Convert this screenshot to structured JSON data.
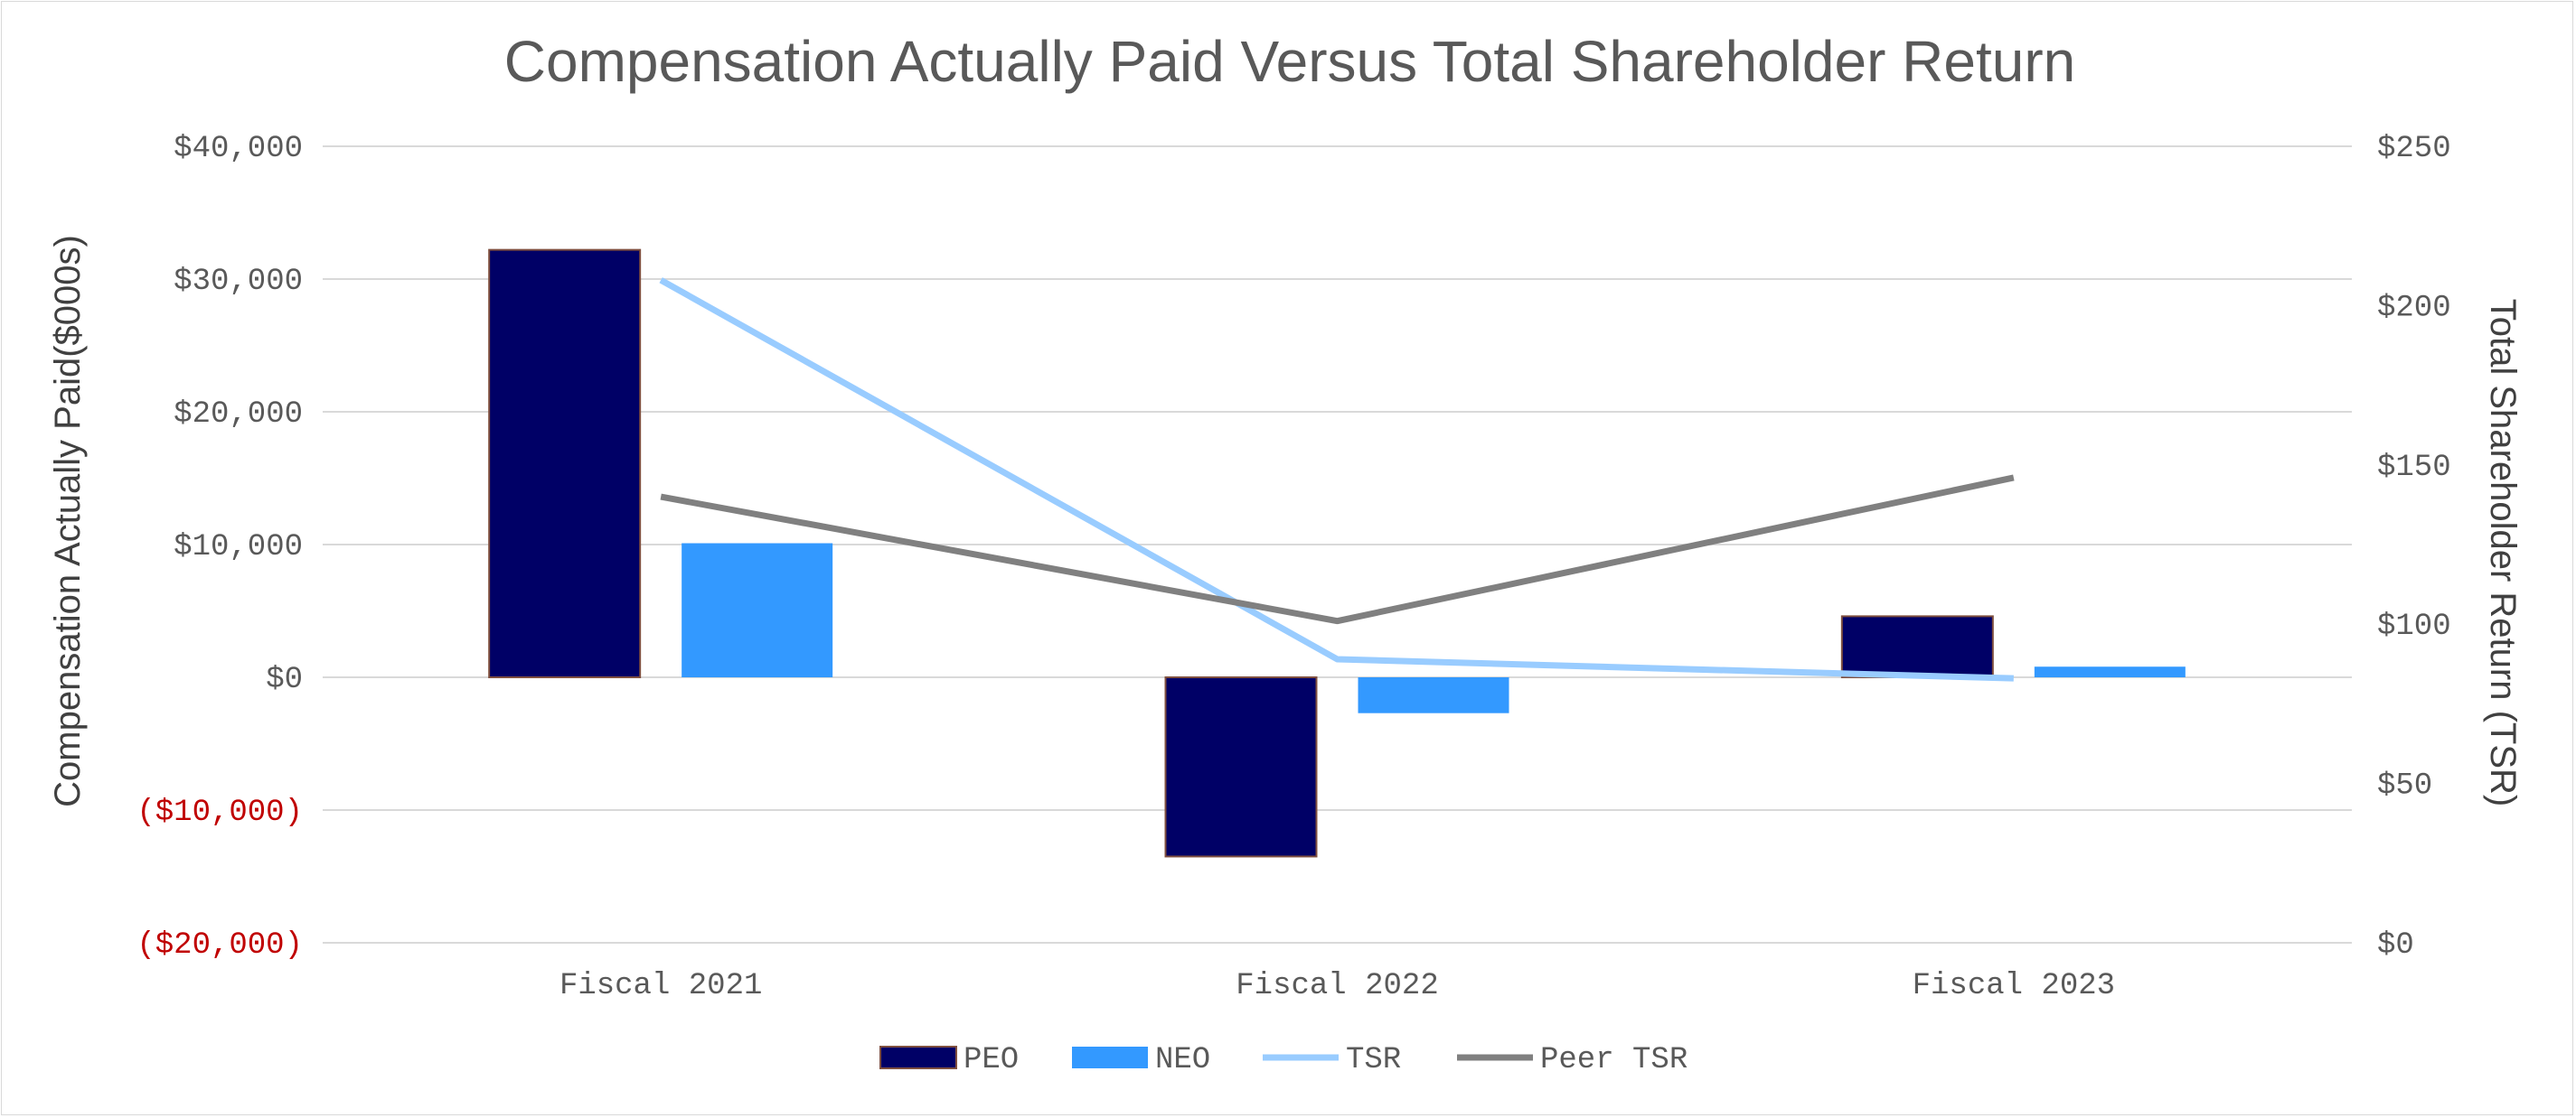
{
  "chart_data": {
    "type": "bar",
    "title": "Compensation Actually Paid Versus Total Shareholder Return",
    "ylabel": "Compensation Actually Paid($000s)",
    "y2label": "Total Shareholder Return (TSR)",
    "categories": [
      "Fiscal 2021",
      "Fiscal 2022",
      "Fiscal 2023"
    ],
    "ylim": [
      -20000,
      40000
    ],
    "y2lim": [
      0,
      250
    ],
    "y_ticks": [
      {
        "value": 40000,
        "label": "$40,000"
      },
      {
        "value": 30000,
        "label": "$30,000"
      },
      {
        "value": 20000,
        "label": "$20,000"
      },
      {
        "value": 10000,
        "label": "$10,000"
      },
      {
        "value": 0,
        "label": "$0"
      },
      {
        "value": -10000,
        "label": "($10,000)"
      },
      {
        "value": -20000,
        "label": "($20,000)"
      }
    ],
    "y2_ticks": [
      {
        "value": 250,
        "label": "$250"
      },
      {
        "value": 200,
        "label": "$200"
      },
      {
        "value": 150,
        "label": "$150"
      },
      {
        "value": 100,
        "label": "$100"
      },
      {
        "value": 50,
        "label": "$50"
      },
      {
        "value": 0,
        "label": "$0"
      }
    ],
    "bar_series": [
      {
        "name": "PEO",
        "color": "#000066",
        "values": [
          32200,
          -13500,
          4600
        ]
      },
      {
        "name": "NEO",
        "color": "#3399ff",
        "values": [
          10100,
          -2700,
          800
        ]
      }
    ],
    "line_series": [
      {
        "name": "TSR",
        "color": "#99ccff",
        "axis": "right",
        "values": [
          208,
          89,
          83
        ]
      },
      {
        "name": "Peer TSR",
        "color": "#808080",
        "axis": "right",
        "values": [
          140,
          101,
          146
        ]
      }
    ],
    "grid": true,
    "legend": "bottom-center"
  }
}
